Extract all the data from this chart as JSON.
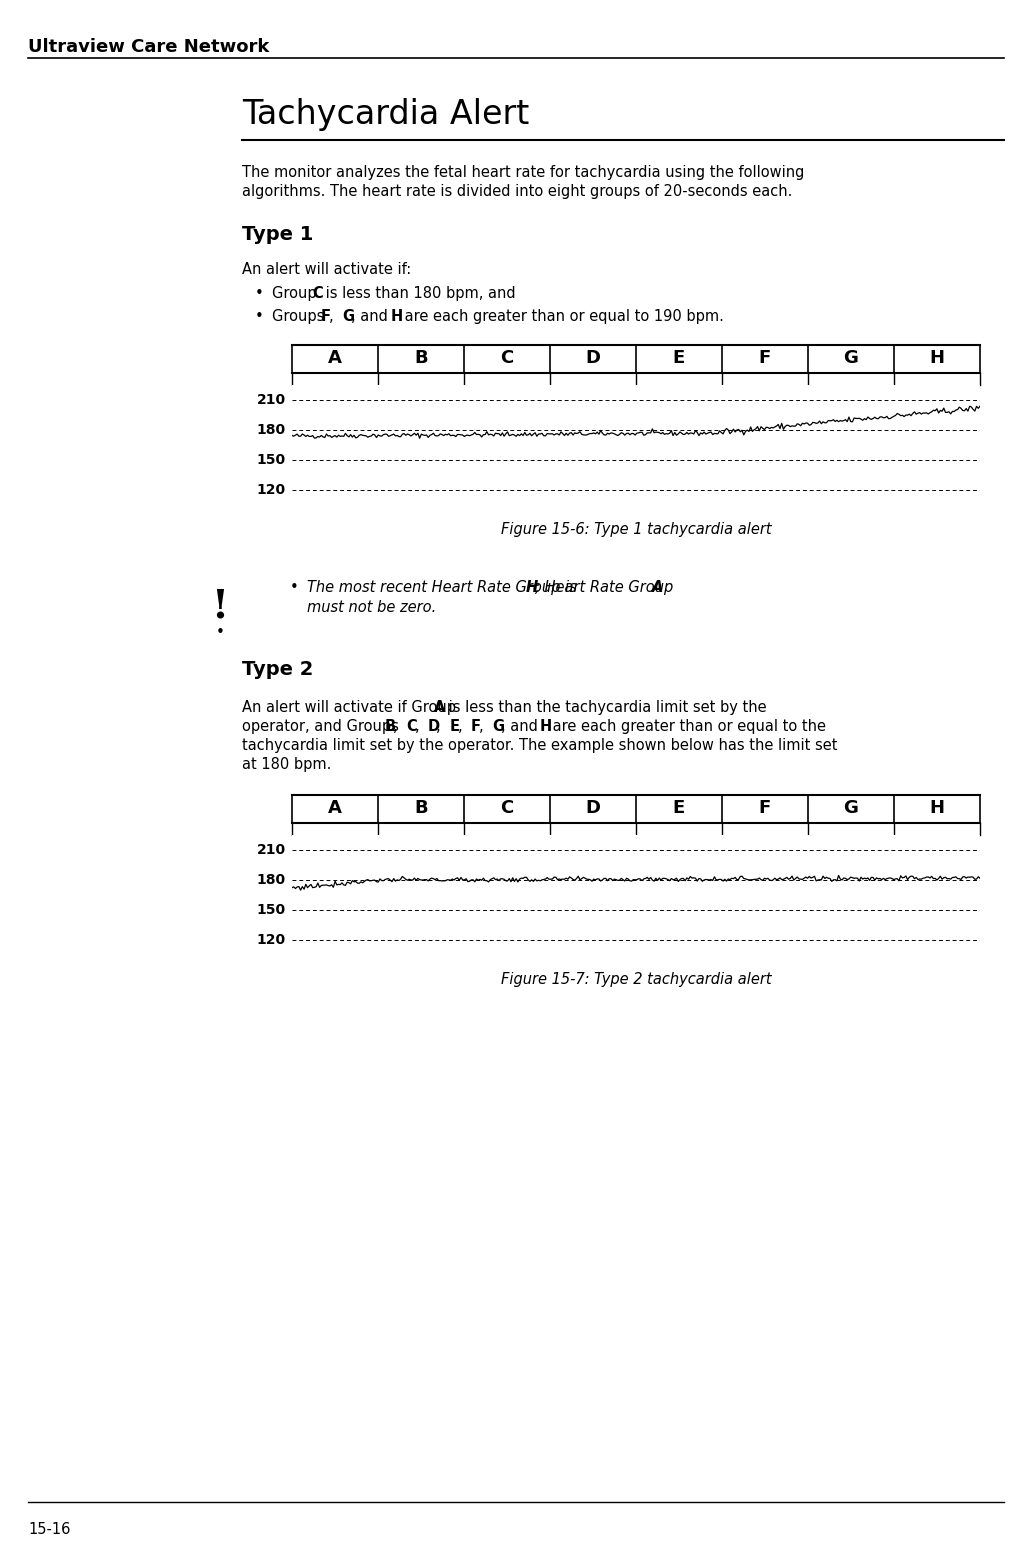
{
  "page_title": "Ultraview Care Network",
  "page_number": "15-16",
  "section_title": "Tachycardia Alert",
  "type1_heading": "Type 1",
  "type1_intro": "An alert will activate if:",
  "type1_fig_caption": "Figure 15-6: Type 1 tachycardia alert",
  "type2_heading": "Type 2",
  "type2_fig_caption": "Figure 15-7: Type 2 tachycardia alert",
  "groups": [
    "A",
    "B",
    "C",
    "D",
    "E",
    "F",
    "G",
    "H"
  ],
  "yticks": [
    120,
    150,
    180,
    210
  ],
  "background_color": "#ffffff",
  "text_color": "#000000",
  "font_family": "DejaVu Sans",
  "body_fontsize": 10.5,
  "heading1_fontsize": 24,
  "heading2_fontsize": 14,
  "header_fontsize": 13
}
